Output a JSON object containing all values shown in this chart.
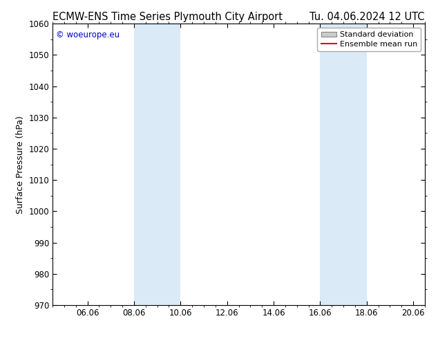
{
  "title_left": "ECMW-ENS Time Series Plymouth City Airport",
  "title_right": "Tu. 04.06.2024 12 UTC",
  "ylabel": "Surface Pressure (hPa)",
  "ylim": [
    970,
    1060
  ],
  "yticks": [
    970,
    980,
    990,
    1000,
    1010,
    1020,
    1030,
    1040,
    1050,
    1060
  ],
  "xtick_labels": [
    "06.06",
    "08.06",
    "10.06",
    "12.06",
    "14.06",
    "16.06",
    "18.06",
    "20.06"
  ],
  "xtick_positions": [
    1.5,
    3.5,
    5.5,
    7.5,
    9.5,
    11.5,
    13.5,
    15.5
  ],
  "shade_bands": [
    {
      "x_start": 3.5,
      "x_end": 5.5
    },
    {
      "x_start": 11.5,
      "x_end": 13.5
    }
  ],
  "shade_color": "#daeaf7",
  "copyright_text": "© woeurope.eu",
  "copyright_color": "#0000cc",
  "legend_std_label": "Standard deviation",
  "legend_mean_label": "Ensemble mean run",
  "legend_std_color": "#cccccc",
  "legend_mean_color": "#dd1111",
  "bg_color": "#ffffff",
  "title_fontsize": 10.5,
  "ylabel_fontsize": 9,
  "tick_fontsize": 8.5,
  "copyright_fontsize": 8.5,
  "legend_fontsize": 8
}
